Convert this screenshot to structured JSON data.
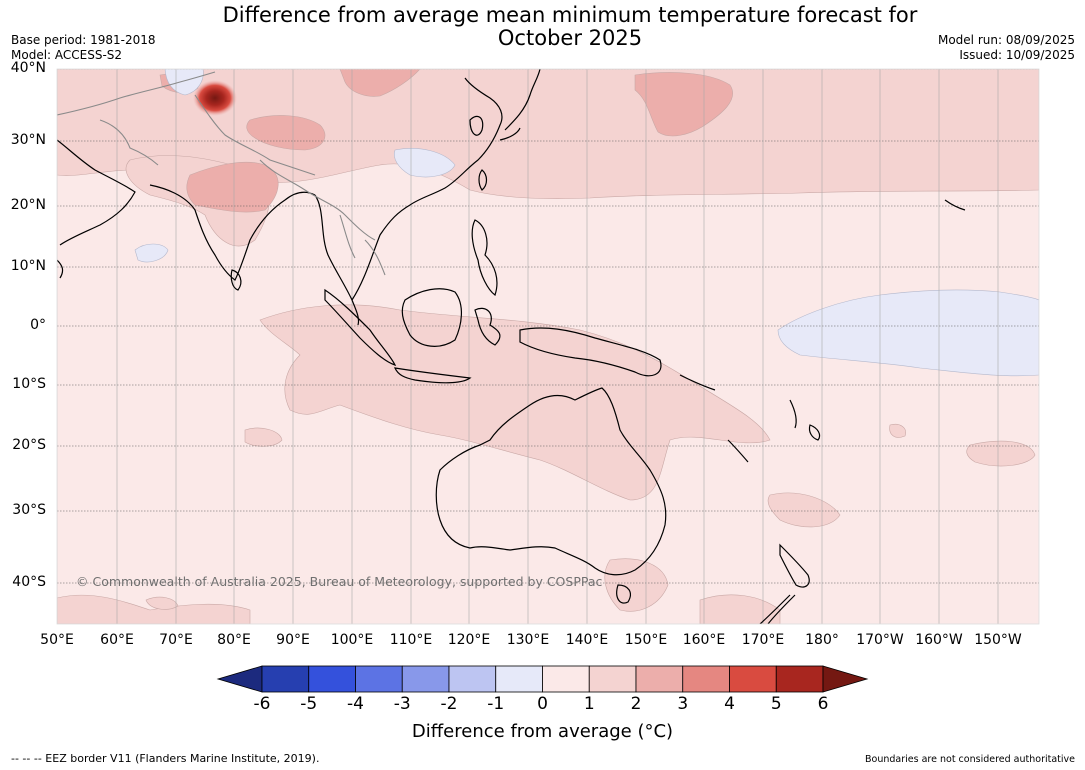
{
  "header": {
    "title_line1": "Difference from average mean minimum temperature forecast for",
    "title_line2": "October 2025",
    "base_period": "Base period: 1981-2018",
    "model": "Model: ACCESS-S2",
    "model_run": "Model run: 08/09/2025",
    "issued": "Issued: 10/09/2025"
  },
  "map": {
    "lat_labels": [
      "40°N",
      "30°N",
      "20°N",
      "10°N",
      "0°",
      "10°S",
      "20°S",
      "30°S",
      "40°S"
    ],
    "lon_labels": [
      "50°E",
      "60°E",
      "70°E",
      "80°E",
      "90°E",
      "100°E",
      "110°E",
      "120°E",
      "130°E",
      "140°E",
      "150°E",
      "160°E",
      "170°E",
      "180°",
      "170°W",
      "160°W",
      "150°W"
    ],
    "copyright": "© Commonwealth of Australia 2025, Bureau of Meteorology, supported by COSPPac",
    "colors": {
      "ocean_base": "#fbe9e8",
      "band_1_2": "#f4d3d1",
      "band_2_3": "#ecaeab",
      "band_3_4": "#e58781",
      "neg_band": "#e7e9f8",
      "hotspot": "#a8261f"
    }
  },
  "colorbar": {
    "ticks": [
      "-6",
      "-5",
      "-4",
      "-3",
      "-2",
      "-1",
      "0",
      "1",
      "2",
      "3",
      "4",
      "5",
      "6"
    ],
    "colors": [
      "#1c2a7e",
      "#263fb0",
      "#3451dc",
      "#5c73e4",
      "#8898ea",
      "#bdc5f2",
      "#e6e9f9",
      "#fbe9e8",
      "#f4d3d1",
      "#ecaeab",
      "#e58781",
      "#d94b40",
      "#a8261f",
      "#741812"
    ],
    "label": "Difference from average (°C)"
  },
  "footer": {
    "eez_note": "-- -- -- EEZ border V11 (Flanders Marine Institute, 2019).",
    "boundaries_note": "Boundaries are not considered authoritative"
  }
}
